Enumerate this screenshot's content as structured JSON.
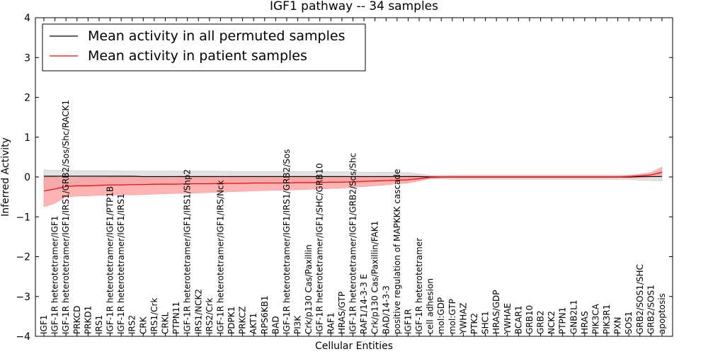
{
  "chart_data": {
    "type": "line",
    "title": "IGF1 pathway -- 34 samples",
    "xlabel": "Cellular Entities",
    "ylabel": "Inferred Activity",
    "ylim": [
      -4,
      4
    ],
    "yticks": [
      -4,
      -3,
      -2,
      -1,
      0,
      1,
      2,
      3,
      4
    ],
    "ytick_labels": [
      "−4",
      "−3",
      "−2",
      "−1",
      "0",
      "1",
      "2",
      "3",
      "4"
    ],
    "grid": false,
    "legend_position": "top-left",
    "categories": [
      "IGF1",
      "IGF-1R heterotetramer/IGF1",
      "IGF-1R heterotetramer/IGF1/IRS1/GRB2/Sos/Shc/RACK1",
      "PRKCD",
      "PRKD1",
      "IRS1",
      "IGF-1R heterotetramer/IGF1/PTP1B",
      "IGF-1R heterotetramer/IGF1/IRS1",
      "IRS2",
      "CRK",
      "IRS1/Crk",
      "CRKL",
      "PTPN11",
      "IGF-1R heterotetramer/IGF1/IRS1/Shp2",
      "IRS1/NCK2",
      "IRS2/Crk",
      "IGF-1R heterotetramer/IGF1/IRS/Nck",
      "PDPK1",
      "PRKCZ",
      "AKT1",
      "RPS6KB1",
      "BAD",
      "IGF-1R heterotetramer/IGF1/IRS1/GRB2/Sos",
      "PI3K",
      "Crk/p130 Cas/Paxillin",
      "IGF-1R heterotetramer/IGF1/SHC/GRB10",
      "RAF1",
      "HRAS/GTP",
      "IGF-1R heterotetramer/IGF1/GRB2/Sos/Shc",
      "RAF1/14-3-3 E",
      "Crk/p130 Cas/Paxillin/FAK1",
      "BAD/14-3-3",
      "positive regulation of MAPKKK cascade",
      "IGF1R",
      "IGF-1R heterotetramer",
      "cell adhesion",
      "mol:GDP",
      "mol:GTP",
      "YWHAZ",
      "PTK2",
      "SHC1",
      "HRAS/GDP",
      "YWHAE",
      "BCAR1",
      "GRB10",
      "GRB2",
      "NCK2",
      "PTPN1",
      "GNB2L1",
      "HRAS",
      "PIK3CA",
      "PIK3R1",
      "PXN",
      "SOS1",
      "GRB2/SOS1/SHC",
      "GRB2/SOS1",
      "apoptosis"
    ],
    "series": [
      {
        "name": "Mean activity in all permuted samples",
        "color": "#000000",
        "band_color": "#bfbfbf",
        "values": [
          0.02,
          0.02,
          0.02,
          0.02,
          0.02,
          0.02,
          0.02,
          0.02,
          0.02,
          0.01,
          0.01,
          0.01,
          0.01,
          0.01,
          0.01,
          0.01,
          0.01,
          0.01,
          0.01,
          0.01,
          0.01,
          0.01,
          0.01,
          0.01,
          0.01,
          0.01,
          0.01,
          0.01,
          0.01,
          0.01,
          0.01,
          0.01,
          0.01,
          0.01,
          0.01,
          0.0,
          0.0,
          0.0,
          0.0,
          0.0,
          0.0,
          0.0,
          0.0,
          0.0,
          0.0,
          0.0,
          0.0,
          0.0,
          0.0,
          0.0,
          0.0,
          0.0,
          0.0,
          0.0,
          0.01,
          0.01,
          0.01
        ],
        "lower": [
          -0.3,
          -0.26,
          -0.24,
          -0.22,
          -0.2,
          -0.2,
          -0.2,
          -0.2,
          -0.18,
          -0.18,
          -0.18,
          -0.18,
          -0.18,
          -0.18,
          -0.18,
          -0.18,
          -0.17,
          -0.17,
          -0.16,
          -0.16,
          -0.16,
          -0.16,
          -0.15,
          -0.15,
          -0.15,
          -0.14,
          -0.14,
          -0.14,
          -0.12,
          -0.12,
          -0.11,
          -0.1,
          -0.09,
          -0.09,
          -0.06,
          -0.04,
          -0.05,
          -0.06,
          -0.06,
          -0.06,
          -0.06,
          -0.06,
          -0.06,
          -0.06,
          -0.06,
          -0.06,
          -0.06,
          -0.06,
          -0.06,
          -0.06,
          -0.06,
          -0.06,
          -0.06,
          -0.06,
          -0.08,
          -0.09,
          -0.1
        ],
        "upper": [
          0.18,
          0.17,
          0.17,
          0.16,
          0.16,
          0.16,
          0.16,
          0.15,
          0.15,
          0.15,
          0.15,
          0.15,
          0.15,
          0.15,
          0.15,
          0.15,
          0.15,
          0.14,
          0.14,
          0.14,
          0.14,
          0.14,
          0.14,
          0.14,
          0.14,
          0.14,
          0.13,
          0.13,
          0.13,
          0.12,
          0.12,
          0.12,
          0.11,
          0.11,
          0.08,
          0.04,
          0.04,
          0.05,
          0.05,
          0.05,
          0.05,
          0.05,
          0.05,
          0.05,
          0.05,
          0.05,
          0.05,
          0.05,
          0.05,
          0.05,
          0.05,
          0.05,
          0.05,
          0.05,
          0.06,
          0.07,
          0.08
        ]
      },
      {
        "name": "Mean activity in patient samples",
        "color": "#ff0000",
        "band_color": "#ff8c8c",
        "values": [
          -0.35,
          -0.3,
          -0.24,
          -0.22,
          -0.22,
          -0.21,
          -0.2,
          -0.2,
          -0.19,
          -0.19,
          -0.18,
          -0.18,
          -0.18,
          -0.17,
          -0.17,
          -0.17,
          -0.16,
          -0.16,
          -0.16,
          -0.15,
          -0.15,
          -0.15,
          -0.15,
          -0.14,
          -0.14,
          -0.14,
          -0.13,
          -0.13,
          -0.12,
          -0.11,
          -0.1,
          -0.09,
          -0.08,
          -0.07,
          -0.04,
          -0.01,
          0.0,
          0.0,
          0.0,
          0.0,
          0.0,
          0.0,
          0.0,
          0.0,
          0.0,
          0.0,
          0.0,
          0.0,
          0.0,
          0.0,
          0.0,
          0.0,
          0.0,
          0.01,
          0.03,
          0.05,
          0.12
        ],
        "lower": [
          -0.75,
          -0.66,
          -0.5,
          -0.48,
          -0.47,
          -0.46,
          -0.45,
          -0.45,
          -0.45,
          -0.44,
          -0.43,
          -0.42,
          -0.41,
          -0.41,
          -0.4,
          -0.39,
          -0.38,
          -0.37,
          -0.36,
          -0.35,
          -0.34,
          -0.33,
          -0.33,
          -0.32,
          -0.31,
          -0.3,
          -0.29,
          -0.28,
          -0.26,
          -0.24,
          -0.22,
          -0.2,
          -0.17,
          -0.15,
          -0.1,
          -0.04,
          -0.02,
          -0.02,
          -0.02,
          -0.02,
          -0.02,
          -0.02,
          -0.02,
          -0.02,
          -0.02,
          -0.02,
          -0.02,
          -0.02,
          -0.02,
          -0.02,
          -0.02,
          -0.02,
          -0.02,
          -0.02,
          -0.02,
          0.0,
          0.02
        ],
        "upper": [
          0.02,
          0.0,
          -0.02,
          -0.01,
          -0.01,
          -0.01,
          0.0,
          0.0,
          0.01,
          0.01,
          0.01,
          0.01,
          0.02,
          0.02,
          0.02,
          0.02,
          0.02,
          0.02,
          0.02,
          0.02,
          0.02,
          0.02,
          0.02,
          0.02,
          0.02,
          0.02,
          0.02,
          0.02,
          0.02,
          0.02,
          0.02,
          0.02,
          0.02,
          0.03,
          0.03,
          0.02,
          0.02,
          0.02,
          0.02,
          0.02,
          0.02,
          0.02,
          0.02,
          0.02,
          0.02,
          0.02,
          0.02,
          0.02,
          0.02,
          0.02,
          0.02,
          0.02,
          0.02,
          0.04,
          0.07,
          0.11,
          0.25
        ]
      }
    ]
  }
}
